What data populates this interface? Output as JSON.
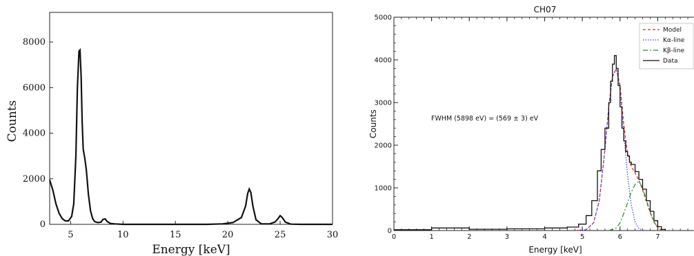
{
  "chart_data": [
    {
      "type": "line",
      "title": "",
      "xlabel": "Energy [keV]",
      "ylabel": "Counts",
      "xlim": [
        3,
        30
      ],
      "ylim": [
        0,
        9300
      ],
      "xticks": [
        5,
        10,
        15,
        20,
        25,
        30
      ],
      "yticks": [
        0,
        2000,
        4000,
        6000,
        8000
      ],
      "series": [
        {
          "x": [
            3.0,
            3.3,
            3.6,
            3.9,
            4.2,
            4.5,
            4.8,
            5.1,
            5.3,
            5.5,
            5.65,
            5.8,
            5.9,
            6.0,
            6.1,
            6.2,
            6.35,
            6.5,
            6.7,
            6.9,
            7.1,
            7.3,
            7.6,
            7.9,
            8.1,
            8.3,
            8.5,
            8.8,
            9.2,
            10,
            12,
            14,
            16,
            18,
            19.5,
            20.5,
            21.3,
            21.7,
            21.9,
            22.05,
            22.2,
            22.4,
            22.7,
            23.2,
            24,
            24.5,
            24.8,
            25.0,
            25.2,
            25.5,
            26,
            27,
            30
          ],
          "y": [
            1950,
            1500,
            900,
            480,
            250,
            150,
            150,
            350,
            900,
            3000,
            6000,
            7600,
            7650,
            6500,
            4500,
            3300,
            2900,
            2400,
            1300,
            600,
            250,
            120,
            80,
            100,
            220,
            240,
            120,
            40,
            20,
            0,
            0,
            0,
            0,
            0,
            20,
            80,
            300,
            800,
            1350,
            1550,
            1400,
            800,
            200,
            20,
            20,
            100,
            250,
            380,
            300,
            100,
            10,
            0,
            0
          ]
        }
      ]
    },
    {
      "type": "line",
      "title": "CH07",
      "xlabel": "Energy [keV]",
      "ylabel": "Counts",
      "xlim": [
        0,
        8
      ],
      "ylim": [
        0,
        5000
      ],
      "xticks": [
        0,
        1,
        2,
        3,
        4,
        5,
        6,
        7
      ],
      "yticks": [
        0,
        1000,
        2000,
        3000,
        4000,
        5000
      ],
      "annotation": "FWHM (5898 eV) = (569 ± 3) eV",
      "legend_position": "top-right",
      "legend": [
        "Model",
        "Kα-line",
        "Kβ-line",
        "Data"
      ],
      "series": [
        {
          "name": "Model",
          "color": "#e02020",
          "dash": "4,3",
          "x": [
            4.8,
            5.1,
            5.3,
            5.45,
            5.6,
            5.7,
            5.8,
            5.9,
            6.0,
            6.1,
            6.2,
            6.3,
            6.4,
            6.5,
            6.6,
            6.7,
            6.8,
            6.9,
            7.0,
            7.1
          ],
          "y": [
            0,
            20,
            180,
            700,
            1900,
            2900,
            3600,
            3800,
            3400,
            2500,
            1800,
            1500,
            1350,
            1180,
            950,
            680,
            420,
            200,
            70,
            10
          ]
        },
        {
          "name": "Kα-line",
          "color": "#3a3adf",
          "dash": "1.5,2",
          "x": [
            4.8,
            5.1,
            5.3,
            5.45,
            5.6,
            5.7,
            5.8,
            5.9,
            6.0,
            6.1,
            6.2,
            6.3,
            6.4,
            6.5,
            6.6,
            6.7
          ],
          "y": [
            0,
            20,
            180,
            700,
            1900,
            2900,
            3600,
            3800,
            3300,
            2300,
            1300,
            600,
            200,
            50,
            10,
            0
          ]
        },
        {
          "name": "Kβ-line",
          "color": "#2a8a2a",
          "dash": "7,3,2,3",
          "x": [
            5.7,
            5.9,
            6.0,
            6.1,
            6.2,
            6.3,
            6.4,
            6.5,
            6.6,
            6.7,
            6.8,
            6.9,
            7.0,
            7.1
          ],
          "y": [
            0,
            60,
            180,
            400,
            650,
            900,
            1080,
            1150,
            1000,
            720,
            430,
            210,
            70,
            10
          ]
        },
        {
          "name": "Data",
          "color": "#111111",
          "step": true,
          "x": [
            0,
            1,
            2,
            3,
            4,
            4.6,
            4.9,
            5.1,
            5.25,
            5.4,
            5.5,
            5.6,
            5.7,
            5.75,
            5.8,
            5.85,
            5.9,
            5.95,
            6.0,
            6.05,
            6.1,
            6.15,
            6.2,
            6.25,
            6.3,
            6.4,
            6.5,
            6.6,
            6.7,
            6.8,
            6.9,
            7.0,
            7.1,
            7.2
          ],
          "y": [
            20,
            60,
            30,
            40,
            60,
            80,
            150,
            350,
            700,
            1400,
            1900,
            2400,
            3000,
            3500,
            3900,
            4100,
            3800,
            3400,
            2900,
            2400,
            2100,
            1850,
            1750,
            1600,
            1550,
            1380,
            1200,
            970,
            700,
            450,
            230,
            90,
            25,
            5
          ]
        }
      ]
    }
  ]
}
